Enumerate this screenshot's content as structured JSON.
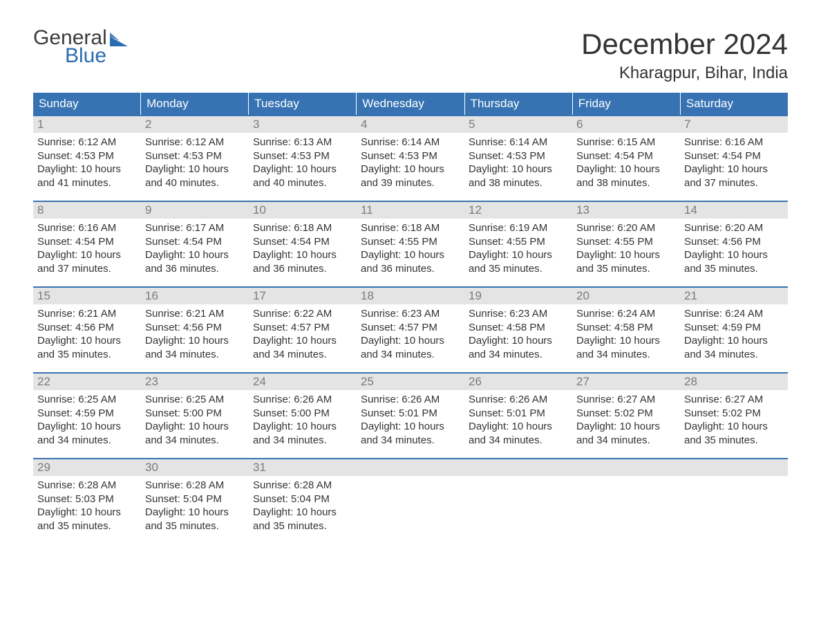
{
  "brand": {
    "text1": "General",
    "text2": "Blue",
    "text_color1": "#3b3b3b",
    "text_color2": "#2a6cb0",
    "shape_color": "#2a6cb0"
  },
  "title": "December 2024",
  "location": "Kharagpur, Bihar, India",
  "colors": {
    "header_bg": "#3773b3",
    "header_text": "#ffffff",
    "daynum_bg": "#e4e4e4",
    "daynum_text": "#7a7a7a",
    "body_text": "#333333",
    "week_border": "#3773b3",
    "page_bg": "#ffffff"
  },
  "typography": {
    "title_fontsize": 42,
    "location_fontsize": 24,
    "dayheader_fontsize": 17,
    "daynum_fontsize": 17,
    "body_fontsize": 15,
    "logo_fontsize": 30
  },
  "day_headers": [
    "Sunday",
    "Monday",
    "Tuesday",
    "Wednesday",
    "Thursday",
    "Friday",
    "Saturday"
  ],
  "weeks": [
    [
      {
        "num": "1",
        "sunrise": "Sunrise: 6:12 AM",
        "sunset": "Sunset: 4:53 PM",
        "daylight1": "Daylight: 10 hours",
        "daylight2": "and 41 minutes."
      },
      {
        "num": "2",
        "sunrise": "Sunrise: 6:12 AM",
        "sunset": "Sunset: 4:53 PM",
        "daylight1": "Daylight: 10 hours",
        "daylight2": "and 40 minutes."
      },
      {
        "num": "3",
        "sunrise": "Sunrise: 6:13 AM",
        "sunset": "Sunset: 4:53 PM",
        "daylight1": "Daylight: 10 hours",
        "daylight2": "and 40 minutes."
      },
      {
        "num": "4",
        "sunrise": "Sunrise: 6:14 AM",
        "sunset": "Sunset: 4:53 PM",
        "daylight1": "Daylight: 10 hours",
        "daylight2": "and 39 minutes."
      },
      {
        "num": "5",
        "sunrise": "Sunrise: 6:14 AM",
        "sunset": "Sunset: 4:53 PM",
        "daylight1": "Daylight: 10 hours",
        "daylight2": "and 38 minutes."
      },
      {
        "num": "6",
        "sunrise": "Sunrise: 6:15 AM",
        "sunset": "Sunset: 4:54 PM",
        "daylight1": "Daylight: 10 hours",
        "daylight2": "and 38 minutes."
      },
      {
        "num": "7",
        "sunrise": "Sunrise: 6:16 AM",
        "sunset": "Sunset: 4:54 PM",
        "daylight1": "Daylight: 10 hours",
        "daylight2": "and 37 minutes."
      }
    ],
    [
      {
        "num": "8",
        "sunrise": "Sunrise: 6:16 AM",
        "sunset": "Sunset: 4:54 PM",
        "daylight1": "Daylight: 10 hours",
        "daylight2": "and 37 minutes."
      },
      {
        "num": "9",
        "sunrise": "Sunrise: 6:17 AM",
        "sunset": "Sunset: 4:54 PM",
        "daylight1": "Daylight: 10 hours",
        "daylight2": "and 36 minutes."
      },
      {
        "num": "10",
        "sunrise": "Sunrise: 6:18 AM",
        "sunset": "Sunset: 4:54 PM",
        "daylight1": "Daylight: 10 hours",
        "daylight2": "and 36 minutes."
      },
      {
        "num": "11",
        "sunrise": "Sunrise: 6:18 AM",
        "sunset": "Sunset: 4:55 PM",
        "daylight1": "Daylight: 10 hours",
        "daylight2": "and 36 minutes."
      },
      {
        "num": "12",
        "sunrise": "Sunrise: 6:19 AM",
        "sunset": "Sunset: 4:55 PM",
        "daylight1": "Daylight: 10 hours",
        "daylight2": "and 35 minutes."
      },
      {
        "num": "13",
        "sunrise": "Sunrise: 6:20 AM",
        "sunset": "Sunset: 4:55 PM",
        "daylight1": "Daylight: 10 hours",
        "daylight2": "and 35 minutes."
      },
      {
        "num": "14",
        "sunrise": "Sunrise: 6:20 AM",
        "sunset": "Sunset: 4:56 PM",
        "daylight1": "Daylight: 10 hours",
        "daylight2": "and 35 minutes."
      }
    ],
    [
      {
        "num": "15",
        "sunrise": "Sunrise: 6:21 AM",
        "sunset": "Sunset: 4:56 PM",
        "daylight1": "Daylight: 10 hours",
        "daylight2": "and 35 minutes."
      },
      {
        "num": "16",
        "sunrise": "Sunrise: 6:21 AM",
        "sunset": "Sunset: 4:56 PM",
        "daylight1": "Daylight: 10 hours",
        "daylight2": "and 34 minutes."
      },
      {
        "num": "17",
        "sunrise": "Sunrise: 6:22 AM",
        "sunset": "Sunset: 4:57 PM",
        "daylight1": "Daylight: 10 hours",
        "daylight2": "and 34 minutes."
      },
      {
        "num": "18",
        "sunrise": "Sunrise: 6:23 AM",
        "sunset": "Sunset: 4:57 PM",
        "daylight1": "Daylight: 10 hours",
        "daylight2": "and 34 minutes."
      },
      {
        "num": "19",
        "sunrise": "Sunrise: 6:23 AM",
        "sunset": "Sunset: 4:58 PM",
        "daylight1": "Daylight: 10 hours",
        "daylight2": "and 34 minutes."
      },
      {
        "num": "20",
        "sunrise": "Sunrise: 6:24 AM",
        "sunset": "Sunset: 4:58 PM",
        "daylight1": "Daylight: 10 hours",
        "daylight2": "and 34 minutes."
      },
      {
        "num": "21",
        "sunrise": "Sunrise: 6:24 AM",
        "sunset": "Sunset: 4:59 PM",
        "daylight1": "Daylight: 10 hours",
        "daylight2": "and 34 minutes."
      }
    ],
    [
      {
        "num": "22",
        "sunrise": "Sunrise: 6:25 AM",
        "sunset": "Sunset: 4:59 PM",
        "daylight1": "Daylight: 10 hours",
        "daylight2": "and 34 minutes."
      },
      {
        "num": "23",
        "sunrise": "Sunrise: 6:25 AM",
        "sunset": "Sunset: 5:00 PM",
        "daylight1": "Daylight: 10 hours",
        "daylight2": "and 34 minutes."
      },
      {
        "num": "24",
        "sunrise": "Sunrise: 6:26 AM",
        "sunset": "Sunset: 5:00 PM",
        "daylight1": "Daylight: 10 hours",
        "daylight2": "and 34 minutes."
      },
      {
        "num": "25",
        "sunrise": "Sunrise: 6:26 AM",
        "sunset": "Sunset: 5:01 PM",
        "daylight1": "Daylight: 10 hours",
        "daylight2": "and 34 minutes."
      },
      {
        "num": "26",
        "sunrise": "Sunrise: 6:26 AM",
        "sunset": "Sunset: 5:01 PM",
        "daylight1": "Daylight: 10 hours",
        "daylight2": "and 34 minutes."
      },
      {
        "num": "27",
        "sunrise": "Sunrise: 6:27 AM",
        "sunset": "Sunset: 5:02 PM",
        "daylight1": "Daylight: 10 hours",
        "daylight2": "and 34 minutes."
      },
      {
        "num": "28",
        "sunrise": "Sunrise: 6:27 AM",
        "sunset": "Sunset: 5:02 PM",
        "daylight1": "Daylight: 10 hours",
        "daylight2": "and 35 minutes."
      }
    ],
    [
      {
        "num": "29",
        "sunrise": "Sunrise: 6:28 AM",
        "sunset": "Sunset: 5:03 PM",
        "daylight1": "Daylight: 10 hours",
        "daylight2": "and 35 minutes."
      },
      {
        "num": "30",
        "sunrise": "Sunrise: 6:28 AM",
        "sunset": "Sunset: 5:04 PM",
        "daylight1": "Daylight: 10 hours",
        "daylight2": "and 35 minutes."
      },
      {
        "num": "31",
        "sunrise": "Sunrise: 6:28 AM",
        "sunset": "Sunset: 5:04 PM",
        "daylight1": "Daylight: 10 hours",
        "daylight2": "and 35 minutes."
      },
      {
        "empty": true
      },
      {
        "empty": true
      },
      {
        "empty": true
      },
      {
        "empty": true
      }
    ]
  ]
}
